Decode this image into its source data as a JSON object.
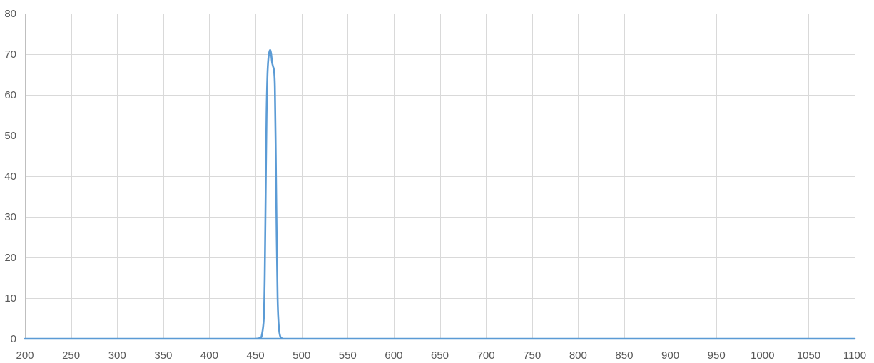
{
  "chart_data": {
    "type": "line",
    "title": "",
    "xlabel": "",
    "ylabel": "",
    "xlim": [
      200,
      1100
    ],
    "ylim": [
      0,
      80
    ],
    "x_ticks": [
      200,
      250,
      300,
      350,
      400,
      450,
      500,
      550,
      600,
      650,
      700,
      750,
      800,
      850,
      900,
      950,
      1000,
      1050,
      1100
    ],
    "y_ticks": [
      0,
      10,
      20,
      30,
      40,
      50,
      60,
      70,
      80
    ],
    "grid": true,
    "legend": "none",
    "colors": {
      "line": "#5b9bd5",
      "grid": "#d9d9d9",
      "axis": "#bfbfbf"
    },
    "series": [
      {
        "x": [
          200,
          440,
          450,
          455,
          457,
          459,
          460,
          461,
          462,
          463,
          464,
          465,
          466,
          467,
          468,
          469,
          470,
          471,
          472,
          473,
          474,
          475,
          476,
          477,
          478,
          480,
          485,
          500,
          1100
        ],
        "values": [
          0,
          0,
          0,
          0.2,
          1,
          5,
          15,
          35,
          55,
          65,
          69,
          70.5,
          71,
          70,
          68,
          67,
          66,
          62,
          45,
          25,
          10,
          4,
          1.5,
          0.5,
          0.2,
          0,
          0,
          0,
          0
        ]
      }
    ]
  }
}
